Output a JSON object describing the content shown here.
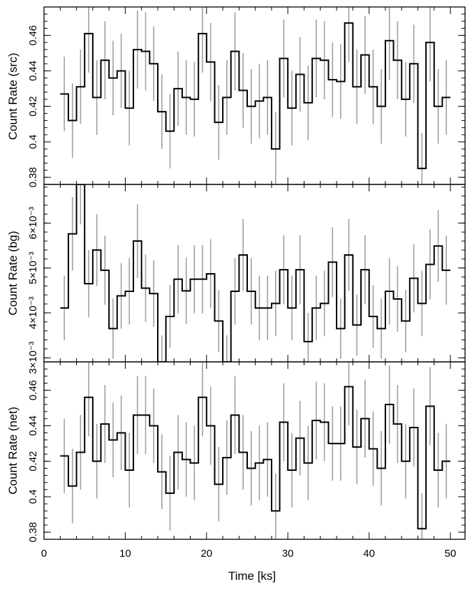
{
  "chart_data": [
    {
      "type": "step",
      "panel": "top",
      "ylabel": "Count Rate (src)",
      "ylim": [
        0.376,
        0.476
      ],
      "yticks": [
        0.38,
        0.4,
        0.42,
        0.44,
        0.46
      ],
      "yticklabels": [
        "0.38",
        "0.4",
        "0.42",
        "0.44",
        "0.46"
      ],
      "grid": false,
      "series": [
        {
          "x": [
            2.5,
            3.5,
            4.5,
            5.5,
            6.5,
            7.5,
            8.5,
            9.5,
            10.5,
            11.5,
            12.5,
            13.5,
            14.5,
            15.5,
            16.5,
            17.5,
            18.5,
            19.5,
            20.5,
            21.5,
            22.5,
            23.5,
            24.5,
            25.5,
            26.5,
            27.5,
            28.5,
            29.5,
            30.5,
            31.5,
            32.5,
            33.5,
            34.5,
            35.5,
            36.5,
            37.5,
            38.5,
            39.5,
            40.5,
            41.5,
            42.5,
            43.5,
            44.5,
            45.5,
            46.5,
            47.5,
            48.5,
            49.5
          ],
          "y": [
            0.427,
            0.412,
            0.431,
            0.461,
            0.425,
            0.446,
            0.436,
            0.44,
            0.419,
            0.452,
            0.451,
            0.444,
            0.417,
            0.406,
            0.43,
            0.425,
            0.424,
            0.461,
            0.445,
            0.411,
            0.425,
            0.451,
            0.429,
            0.42,
            0.423,
            0.425,
            0.396,
            0.447,
            0.419,
            0.438,
            0.422,
            0.447,
            0.446,
            0.435,
            0.434,
            0.467,
            0.431,
            0.449,
            0.431,
            0.42,
            0.457,
            0.446,
            0.424,
            0.444,
            0.385,
            0.456,
            0.42,
            0.425
          ],
          "err": [
            0.021,
            0.021,
            0.021,
            0.022,
            0.021,
            0.022,
            0.021,
            0.021,
            0.021,
            0.022,
            0.022,
            0.021,
            0.021,
            0.021,
            0.021,
            0.021,
            0.021,
            0.022,
            0.022,
            0.021,
            0.021,
            0.022,
            0.021,
            0.021,
            0.021,
            0.021,
            0.021,
            0.022,
            0.021,
            0.021,
            0.021,
            0.022,
            0.022,
            0.021,
            0.021,
            0.022,
            0.021,
            0.022,
            0.021,
            0.021,
            0.022,
            0.022,
            0.021,
            0.022,
            0.02,
            0.022,
            0.021,
            0.021
          ]
        }
      ]
    },
    {
      "type": "step",
      "panel": "middle",
      "ylabel": "Count Rate (bg)",
      "ylim": [
        0.00291,
        0.00686
      ],
      "yticks": [
        0.003,
        0.004,
        0.005,
        0.006
      ],
      "yticklabels": [
        "3×10⁻³",
        "4×10⁻³",
        "5×10⁻³",
        "6×10⁻³"
      ],
      "grid": false,
      "series": [
        {
          "x": [
            2.5,
            3.5,
            4.5,
            5.5,
            6.5,
            7.5,
            8.5,
            9.5,
            10.5,
            11.5,
            12.5,
            13.5,
            14.5,
            15.5,
            16.5,
            17.5,
            18.5,
            19.5,
            20.5,
            21.5,
            22.5,
            23.5,
            24.5,
            25.5,
            26.5,
            27.5,
            28.5,
            29.5,
            30.5,
            31.5,
            32.5,
            33.5,
            34.5,
            35.5,
            36.5,
            37.5,
            38.5,
            39.5,
            40.5,
            41.5,
            42.5,
            43.5,
            44.5,
            45.5,
            46.5,
            47.5,
            48.5,
            49.5
          ],
          "y": [
            0.00411,
            0.00576,
            0.00687,
            0.00465,
            0.0054,
            0.00495,
            0.00365,
            0.00438,
            0.00448,
            0.0056,
            0.00455,
            0.00443,
            0.00291,
            0.00392,
            0.00475,
            0.00449,
            0.00475,
            0.00475,
            0.00487,
            0.00382,
            0.00291,
            0.00448,
            0.00529,
            0.00448,
            0.00411,
            0.00411,
            0.00421,
            0.00496,
            0.00411,
            0.00496,
            0.00336,
            0.00411,
            0.00421,
            0.00513,
            0.00365,
            0.00529,
            0.00373,
            0.00496,
            0.00392,
            0.00365,
            0.00448,
            0.00431,
            0.00382,
            0.00477,
            0.00421,
            0.00508,
            0.00549,
            0.00495
          ],
          "err": [
            0.00072,
            0.00082,
            0.0009,
            0.00075,
            0.0008,
            0.00077,
            0.00067,
            0.00073,
            0.00074,
            0.00082,
            0.00075,
            0.00074,
            0.00059,
            0.0007,
            0.00076,
            0.00074,
            0.00076,
            0.00076,
            0.00077,
            0.00069,
            0.00059,
            0.00074,
            0.0008,
            0.00074,
            0.00072,
            0.00072,
            0.00073,
            0.00077,
            0.00072,
            0.00077,
            0.00064,
            0.00072,
            0.00073,
            0.00078,
            0.00067,
            0.0008,
            0.00068,
            0.00077,
            0.0007,
            0.00067,
            0.00074,
            0.00073,
            0.00069,
            0.00076,
            0.00073,
            0.00078,
            0.0008,
            0.00077
          ]
        }
      ]
    },
    {
      "type": "step",
      "panel": "bottom",
      "ylabel": "Count Rate (net)",
      "ylim": [
        0.376,
        0.476
      ],
      "yticks": [
        0.38,
        0.4,
        0.42,
        0.44,
        0.46
      ],
      "yticklabels": [
        "0.38",
        "0.4",
        "0.42",
        "0.44",
        "0.46"
      ],
      "xlabel": "Time [ks]",
      "xlim": [
        0,
        51.8
      ],
      "xticks": [
        0,
        10,
        20,
        30,
        40,
        50
      ],
      "xticklabels": [
        "0",
        "10",
        "20",
        "30",
        "40",
        "50"
      ],
      "grid": false,
      "series": [
        {
          "x": [
            2.5,
            3.5,
            4.5,
            5.5,
            6.5,
            7.5,
            8.5,
            9.5,
            10.5,
            11.5,
            12.5,
            13.5,
            14.5,
            15.5,
            16.5,
            17.5,
            18.5,
            19.5,
            20.5,
            21.5,
            22.5,
            23.5,
            24.5,
            25.5,
            26.5,
            27.5,
            28.5,
            29.5,
            30.5,
            31.5,
            32.5,
            33.5,
            34.5,
            35.5,
            36.5,
            37.5,
            38.5,
            39.5,
            40.5,
            41.5,
            42.5,
            43.5,
            44.5,
            45.5,
            46.5,
            47.5,
            48.5,
            49.5
          ],
          "y": [
            0.423,
            0.406,
            0.425,
            0.456,
            0.42,
            0.441,
            0.432,
            0.436,
            0.415,
            0.446,
            0.446,
            0.44,
            0.414,
            0.402,
            0.425,
            0.421,
            0.419,
            0.456,
            0.44,
            0.407,
            0.422,
            0.446,
            0.425,
            0.416,
            0.419,
            0.421,
            0.392,
            0.442,
            0.415,
            0.433,
            0.419,
            0.443,
            0.442,
            0.43,
            0.43,
            0.462,
            0.428,
            0.444,
            0.427,
            0.416,
            0.452,
            0.441,
            0.42,
            0.439,
            0.382,
            0.451,
            0.415,
            0.42
          ],
          "err": [
            0.021,
            0.021,
            0.021,
            0.022,
            0.021,
            0.022,
            0.021,
            0.021,
            0.021,
            0.022,
            0.022,
            0.021,
            0.021,
            0.021,
            0.021,
            0.021,
            0.021,
            0.022,
            0.022,
            0.021,
            0.021,
            0.022,
            0.021,
            0.021,
            0.021,
            0.021,
            0.021,
            0.022,
            0.021,
            0.021,
            0.021,
            0.022,
            0.022,
            0.021,
            0.021,
            0.022,
            0.021,
            0.022,
            0.021,
            0.021,
            0.022,
            0.022,
            0.021,
            0.022,
            0.02,
            0.022,
            0.021,
            0.021
          ]
        }
      ]
    }
  ],
  "colors": {
    "step_line": "#000000",
    "error_bar": "#a0a0a0",
    "frame": "#000000"
  }
}
